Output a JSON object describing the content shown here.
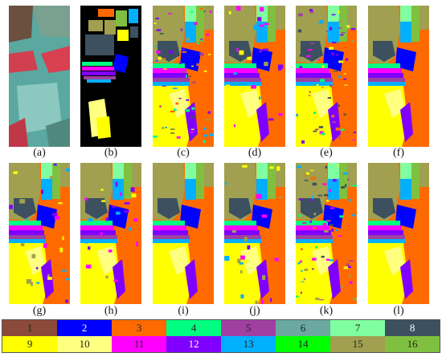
{
  "panels": [
    {
      "label": "a",
      "type": "false-color"
    },
    {
      "label": "b",
      "type": "ground-truth"
    },
    {
      "label": "c",
      "type": "classification-noisy"
    },
    {
      "label": "d",
      "type": "classification"
    },
    {
      "label": "e",
      "type": "classification-noisy"
    },
    {
      "label": "f",
      "type": "classification-smooth"
    },
    {
      "label": "g",
      "type": "classification"
    },
    {
      "label": "h",
      "type": "classification"
    },
    {
      "label": "i",
      "type": "classification-smooth"
    },
    {
      "label": "j",
      "type": "classification"
    },
    {
      "label": "k",
      "type": "classification-noisy"
    },
    {
      "label": "l",
      "type": "classification-smooth"
    }
  ],
  "captions": {
    "a": "(a)",
    "b": "(b)",
    "c": "(c)",
    "d": "(d)",
    "e": "(e)",
    "f": "(f)",
    "g": "(g)",
    "h": "(h)",
    "i": "(i)",
    "j": "(j)",
    "k": "(k)",
    "l": "(l)"
  },
  "legend": [
    {
      "num": "1",
      "color": "#8b4a3a"
    },
    {
      "num": "2",
      "color": "#0000ff"
    },
    {
      "num": "3",
      "color": "#ff6a00"
    },
    {
      "num": "4",
      "color": "#00ff80"
    },
    {
      "num": "5",
      "color": "#a040a0"
    },
    {
      "num": "6",
      "color": "#6aa8a0"
    },
    {
      "num": "7",
      "color": "#80ffa0"
    },
    {
      "num": "8",
      "color": "#3c5060"
    },
    {
      "num": "9",
      "color": "#ffff00"
    },
    {
      "num": "10",
      "color": "#ffff80"
    },
    {
      "num": "11",
      "color": "#ff00ff"
    },
    {
      "num": "12",
      "color": "#8000ff"
    },
    {
      "num": "13",
      "color": "#00b0ff"
    },
    {
      "num": "14",
      "color": "#00ff00"
    },
    {
      "num": "15",
      "color": "#a0a050"
    },
    {
      "num": "16",
      "color": "#80c040"
    }
  ]
}
